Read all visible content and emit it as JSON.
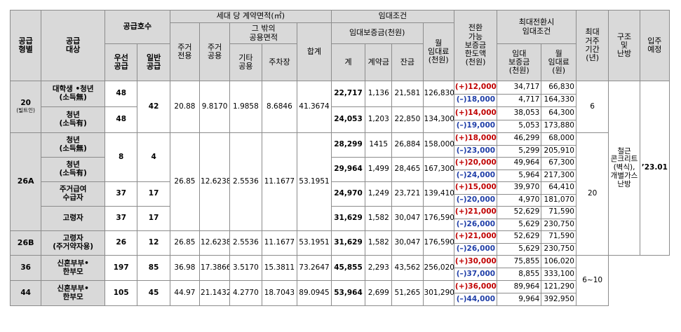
{
  "header": {
    "type": "공급\n형별",
    "target": "공급\n대상",
    "supply_count": "공급호수",
    "priority": "우선\n공급",
    "general": "일반\n공급",
    "area": "세대 당 계약면적(㎡)",
    "excl": "주거\n전용",
    "common": "주거\n공용",
    "other_common": "그 밖의\n공용면적",
    "etc_common": "기타\n공용",
    "parking": "주차장",
    "area_total": "합계",
    "lease": "임대조건",
    "deposit": "임대보증금(천원)",
    "dep_total": "계",
    "dep_contract": "계약금",
    "dep_balance": "잔금",
    "rent": "월\n임대료\n(천원)",
    "conv_limit": "전환\n가능\n보증금\n한도액\n(천원)",
    "max_conv": "최대전환시\n임대조건",
    "max_dep": "임대\n보증금\n(천원)",
    "max_rent": "월\n임대료\n(원)",
    "max_stay": "최대\n거주\n기간\n(년)",
    "structure": "구조\n및\n난방",
    "move_in": "입주\n예정"
  },
  "rows": {
    "r20": {
      "type": "20",
      "type_sub": "(빌트인)",
      "area": [
        "20.88",
        "9.8170",
        "1.9858",
        "8.6846",
        "41.3674"
      ],
      "general": "42",
      "stay": "6",
      "groups": [
        {
          "target": "대학생 •청년\n(소득無)",
          "priority": "48",
          "dep": [
            "22,717",
            "1,136",
            "21,581"
          ],
          "rent": "126,830",
          "conv": [
            {
              "amount": "(+)12,000",
              "dep": "34,717",
              "rent": "66,830"
            },
            {
              "amount": "(–)18,000",
              "dep": "4,717",
              "rent": "164,330"
            }
          ]
        },
        {
          "target": "청년\n(소득有)",
          "priority": "48",
          "dep": [
            "24,053",
            "1,203",
            "22,850"
          ],
          "rent": "134,300",
          "conv": [
            {
              "amount": "(+)14,000",
              "dep": "38,053",
              "rent": "64,300"
            },
            {
              "amount": "(–)19,000",
              "dep": "5,053",
              "rent": "173,880"
            }
          ]
        }
      ]
    },
    "r26a": {
      "type": "26A",
      "area": [
        "26.85",
        "12.6238",
        "2.5536",
        "11.1677",
        "53.1951"
      ],
      "youth_priority": "8",
      "youth_general": "4",
      "groups": [
        {
          "target": "청년\n(소득無)",
          "dep": [
            "28,299",
            "1415",
            "26,884"
          ],
          "rent": "158,000",
          "conv": [
            {
              "amount": "(+)18,000",
              "dep": "46,299",
              "rent": "68,000"
            },
            {
              "amount": "(–)23,000",
              "dep": "5,299",
              "rent": "205,910"
            }
          ]
        },
        {
          "target": "청년\n(소득有)",
          "dep": [
            "29,964",
            "1,499",
            "28,465"
          ],
          "rent": "167,300",
          "conv": [
            {
              "amount": "(+)20,000",
              "dep": "49,964",
              "rent": "67,300"
            },
            {
              "amount": "(–)24,000",
              "dep": "5,964",
              "rent": "217,300"
            }
          ]
        },
        {
          "target": "주거급여\n수급자",
          "priority": "37",
          "general": "17",
          "dep": [
            "24,970",
            "1,249",
            "23,721"
          ],
          "rent": "139,410",
          "conv": [
            {
              "amount": "(+)15,000",
              "dep": "39,970",
              "rent": "64,410"
            },
            {
              "amount": "(–)20,000",
              "dep": "4,970",
              "rent": "181,070"
            }
          ]
        },
        {
          "target": "고령자",
          "priority": "37",
          "general": "17",
          "dep": [
            "31,629",
            "1,582",
            "30,047"
          ],
          "rent": "176,590",
          "conv": [
            {
              "amount": "(+)21,000",
              "dep": "52,629",
              "rent": "71,590"
            },
            {
              "amount": "(–)26,000",
              "dep": "5,629",
              "rent": "230,750"
            }
          ]
        }
      ],
      "stay": "20",
      "structure": "철근\n콘크리트\n(벽식),\n개별가스\n난방",
      "move_in": "’23.01"
    },
    "r26b": {
      "type": "26B",
      "target": "고령자\n(주거약자용)",
      "priority": "26",
      "general": "12",
      "area": [
        "26.85",
        "12.6238",
        "2.5536",
        "11.1677",
        "53.1951"
      ],
      "dep": [
        "31,629",
        "1,582",
        "30,047"
      ],
      "rent": "176,590",
      "conv": [
        {
          "amount": "(+)21,000",
          "dep": "52,629",
          "rent": "71,590"
        },
        {
          "amount": "(–)26,000",
          "dep": "5,629",
          "rent": "230,750"
        }
      ]
    },
    "r36": {
      "type": "36",
      "target": "신혼부부•\n한부모",
      "priority": "197",
      "general": "85",
      "area": [
        "36.98",
        "17.3866",
        "3.5170",
        "15.3811",
        "73.2647"
      ],
      "dep": [
        "45,855",
        "2,293",
        "43,562"
      ],
      "rent": "256,020",
      "conv": [
        {
          "amount": "(+)30,000",
          "dep": "75,855",
          "rent": "106,020"
        },
        {
          "amount": "(–)37,000",
          "dep": "8,855",
          "rent": "333,100"
        }
      ],
      "stay": "6~10"
    },
    "r44": {
      "type": "44",
      "target": "신혼부부•\n한부모",
      "priority": "105",
      "general": "45",
      "area": [
        "44.97",
        "21.1432",
        "4.2770",
        "18.7043",
        "89.0945"
      ],
      "dep": [
        "53,964",
        "2,699",
        "51,265"
      ],
      "rent": "301,290",
      "conv": [
        {
          "amount": "(+)36,000",
          "dep": "89,964",
          "rent": "121,290"
        },
        {
          "amount": "(–)44,000",
          "dep": "9,964",
          "rent": "392,950"
        }
      ]
    }
  }
}
